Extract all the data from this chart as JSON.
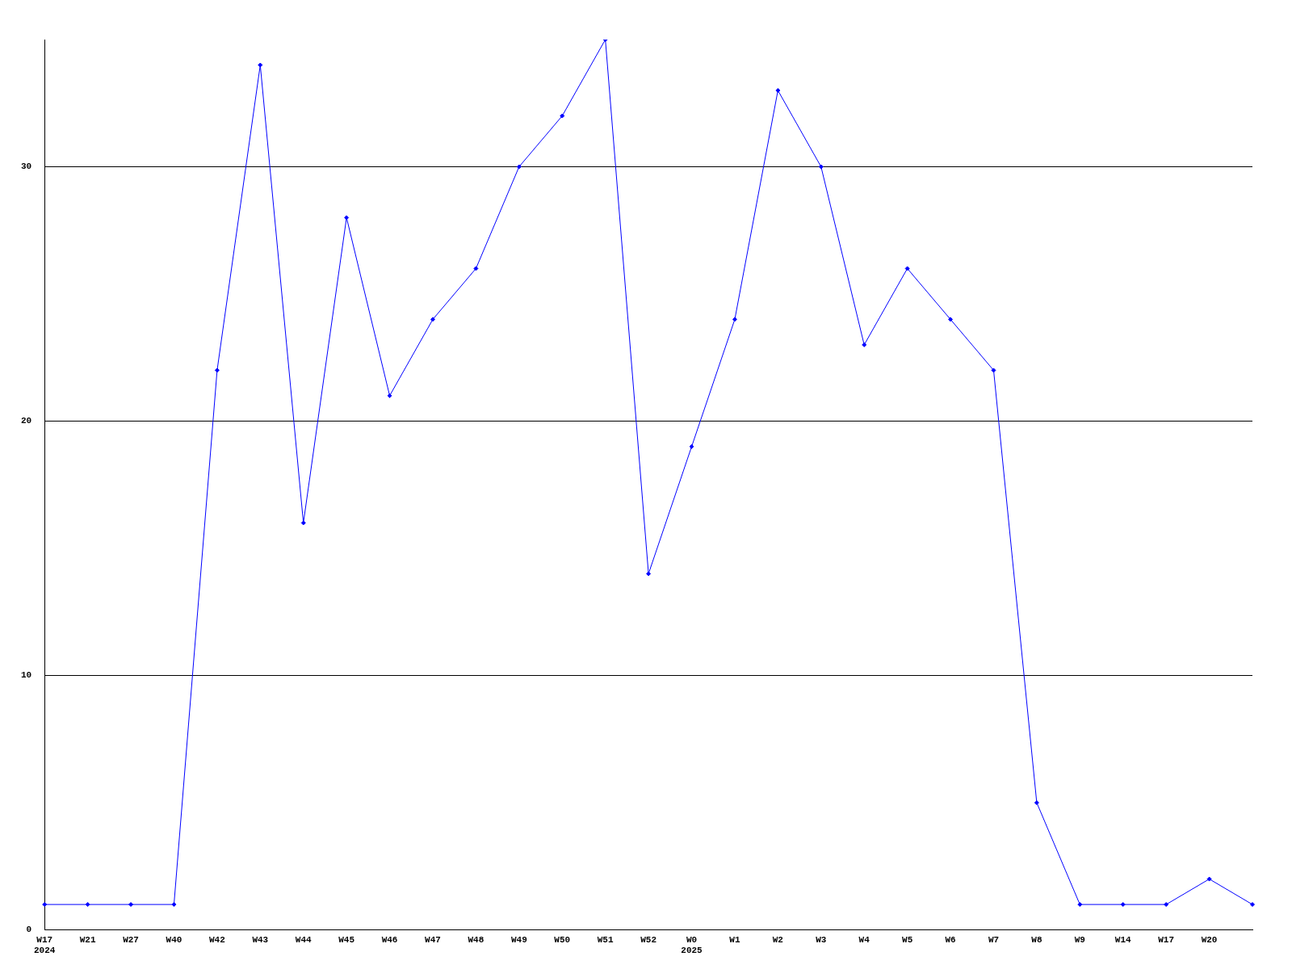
{
  "chart_data": {
    "type": "line",
    "categories": [
      "W17\n2024",
      "W21",
      "W27",
      "W40",
      "W42",
      "W43",
      "W44",
      "W45",
      "W46",
      "W47",
      "W48",
      "W49",
      "W50",
      "W51",
      "W52",
      "W0\n2025",
      "W1",
      "W2",
      "W3",
      "W4",
      "W5",
      "W6",
      "W7",
      "W8",
      "W9",
      "W14",
      "W17",
      "W20",
      null
    ],
    "series": [
      {
        "color": "#0000ff",
        "values": [
          1,
          1,
          1,
          1,
          22,
          34,
          16,
          28,
          21,
          24,
          26,
          30,
          32,
          35,
          14,
          19,
          24,
          33,
          30,
          23,
          26,
          24,
          22,
          5,
          1,
          1,
          1,
          2,
          1
        ]
      }
    ],
    "ylim": [
      0,
      35
    ],
    "yticks": [
      0,
      10,
      20,
      30
    ],
    "grid": "y",
    "legend": false,
    "marker": "diamond",
    "line_style": "solid"
  }
}
